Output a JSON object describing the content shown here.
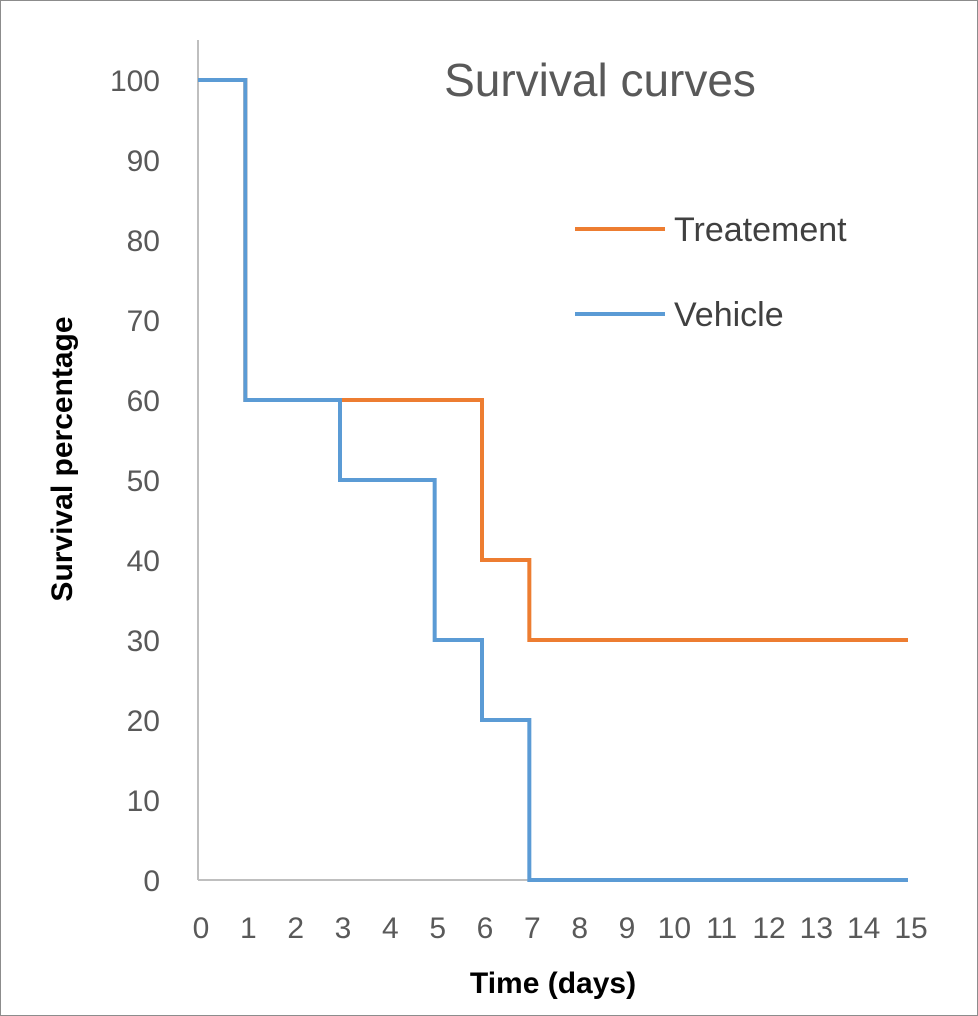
{
  "chart_data": {
    "type": "line",
    "step": true,
    "title": "Survival curves",
    "xlabel": "Time (days)",
    "ylabel": "Survival percentage",
    "xlim": [
      0,
      15
    ],
    "ylim": [
      0,
      100
    ],
    "x_ticks": [
      0,
      1,
      2,
      3,
      4,
      5,
      6,
      7,
      8,
      9,
      10,
      11,
      12,
      13,
      14,
      15
    ],
    "y_ticks": [
      0,
      10,
      20,
      30,
      40,
      50,
      60,
      70,
      80,
      90,
      100
    ],
    "grid": false,
    "legend_position": "right",
    "series": [
      {
        "name": "Treatement",
        "color": "#ED7D31",
        "x": [
          0,
          1,
          3,
          6,
          7,
          15
        ],
        "y": [
          100,
          60,
          60,
          40,
          30,
          30
        ]
      },
      {
        "name": "Vehicle",
        "color": "#5B9BD5",
        "x": [
          0,
          1,
          3,
          5,
          6,
          7,
          15
        ],
        "y": [
          100,
          60,
          50,
          30,
          20,
          0,
          0
        ]
      }
    ]
  }
}
